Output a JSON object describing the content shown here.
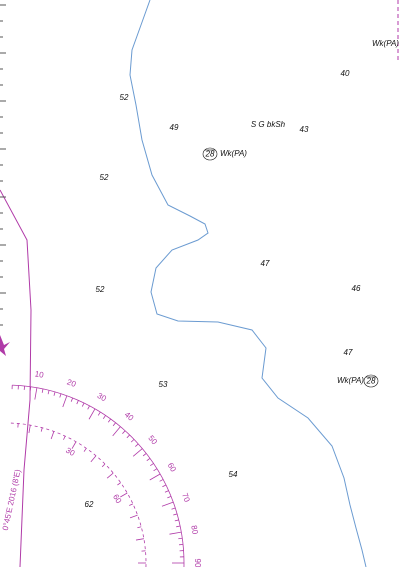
{
  "soundings": [
    52,
    49,
    40,
    43,
    52,
    47,
    46,
    52,
    47,
    53,
    54,
    62
  ],
  "seabed": "S G bkSh",
  "wrecks": [
    {
      "label": "Wk(PA)"
    },
    {
      "label": "Wk(PA)",
      "depth": 28
    },
    {
      "label": "Wk(PA)",
      "depth": 28
    }
  ],
  "compass": {
    "outer": [
      10,
      20,
      30,
      40,
      50,
      60,
      70,
      80,
      90
    ],
    "inner": [
      30,
      60
    ],
    "variation": "0°45'E 2016 (8'E)"
  }
}
